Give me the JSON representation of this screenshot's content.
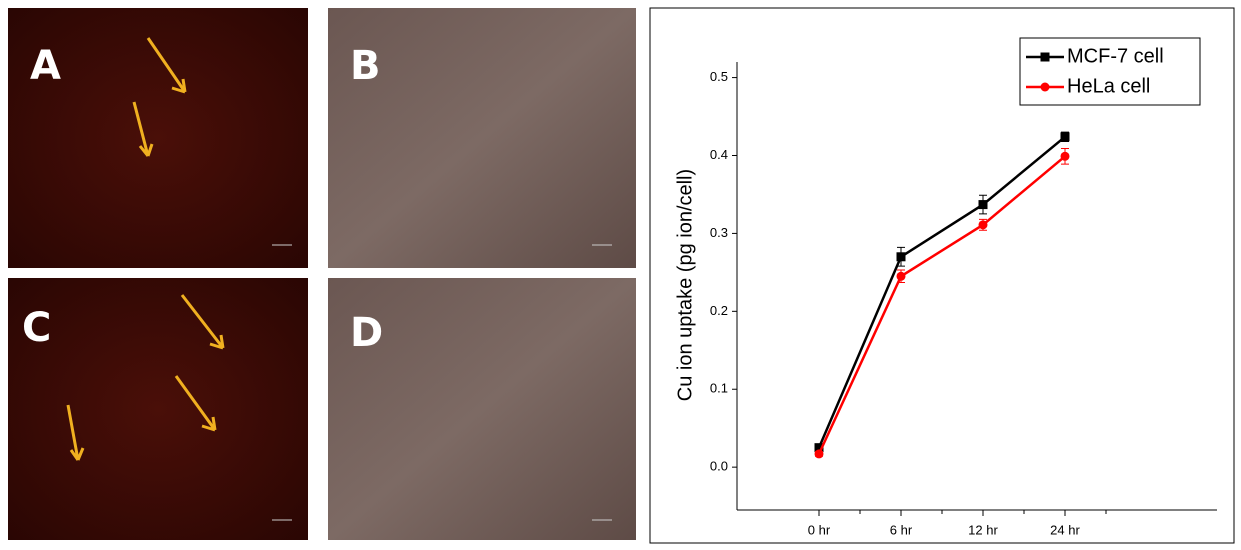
{
  "panels": [
    {
      "label": "A"
    },
    {
      "label": "B"
    },
    {
      "label": "C"
    },
    {
      "label": "D"
    }
  ],
  "chart_data": {
    "type": "line",
    "y_label": "Cu ion uptake (pg ion/cell)",
    "categories": [
      "0 hr",
      "6 hr",
      "12 hr",
      "24 hr"
    ],
    "series": [
      {
        "name": "MCF-7 cell",
        "color": "#000000",
        "marker": "square",
        "values": [
          0.025,
          0.27,
          0.337,
          0.424
        ],
        "errors": [
          0.004,
          0.012,
          0.012,
          0.006
        ]
      },
      {
        "name": "HeLa cell",
        "color": "#ff0000",
        "marker": "circle",
        "values": [
          0.017,
          0.245,
          0.311,
          0.399
        ],
        "errors": [
          0.003,
          0.008,
          0.007,
          0.01
        ]
      }
    ],
    "ylim": [
      -0.055,
      0.52
    ],
    "yticks": [
      {
        "value": 0,
        "label": "0.0"
      },
      0.1,
      0.2,
      0.3,
      0.4,
      0.5
    ],
    "legend": "upper right"
  }
}
